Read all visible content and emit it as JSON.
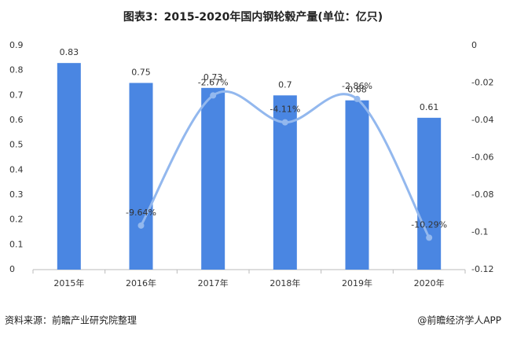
{
  "chart_data": {
    "type": "combo",
    "title": "图表3：2015-2020年国内钢轮毂产量(单位：亿只)",
    "categories": [
      "2015年",
      "2016年",
      "2017年",
      "2018年",
      "2019年",
      "2020年"
    ],
    "series": [
      {
        "type": "bar",
        "color": "#4a86e2",
        "values": [
          0.83,
          0.75,
          0.73,
          0.7,
          0.68,
          0.61
        ]
      },
      {
        "type": "line",
        "axis": "y2",
        "color": "#93b8ee",
        "values": [
          null,
          -0.0964,
          -0.0267,
          -0.0411,
          -0.0286,
          -0.1029
        ],
        "value_labels": [
          null,
          "-9.64%",
          "-2.67%",
          "-4.11%",
          "-2.86%",
          "-10.29%"
        ]
      }
    ],
    "ylim": [
      0,
      0.9
    ],
    "yticks": [
      0,
      0.1,
      0.2,
      0.3,
      0.4,
      0.5,
      0.6,
      0.7,
      0.8,
      0.9
    ],
    "y2lim": [
      -0.12,
      0
    ],
    "y2ticks": [
      0,
      -0.02,
      -0.04,
      -0.06,
      -0.08,
      -0.1,
      -0.12
    ],
    "source": "资料来源：前瞻产业研究院整理",
    "credit": "@前瞻经济学人APP"
  }
}
